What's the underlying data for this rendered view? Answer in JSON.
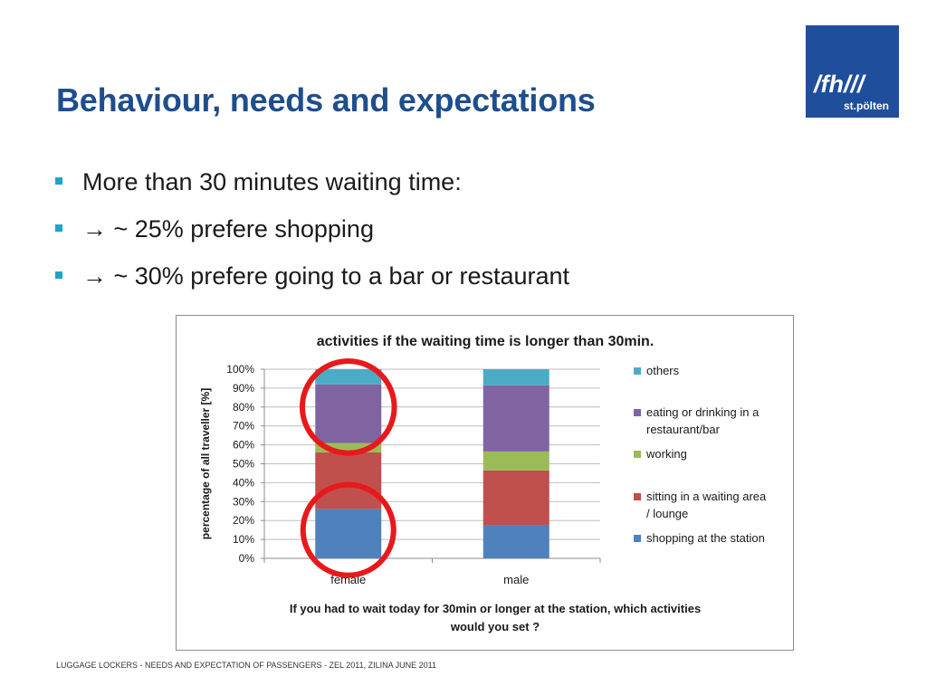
{
  "slide": {
    "title": "Behaviour, needs and expectations",
    "logo_main": "/fh///",
    "logo_sub": "st.pölten",
    "bullets": [
      "More than 30 minutes waiting time:",
      "→ ~ 25% prefere shopping",
      "→ ~ 30% prefere going to a bar or restaurant"
    ],
    "footer": "LUGGAGE LOCKERS - NEEDS AND EXPECTATION OF PASSENGERS  - ZEL 2011, ZILINA JUNE 2011"
  },
  "colors": {
    "title": "#1f4e8c",
    "logo_bg": "#1f4e9c",
    "bullet": "#1ea4c8",
    "highlight_circle": "#e8191c"
  },
  "chart_data": {
    "type": "bar",
    "stacked": true,
    "title": "activities if the waiting time is longer than 30min.",
    "xlabel": "If you had to wait today for 30min or longer at the station, which activities would you set ?",
    "ylabel": "percentage of all traveller [%]",
    "ylim": [
      0,
      100
    ],
    "yticks": [
      "0%",
      "10%",
      "20%",
      "30%",
      "40%",
      "50%",
      "60%",
      "70%",
      "80%",
      "90%",
      "100%"
    ],
    "grid": true,
    "legend_position": "right",
    "categories": [
      "female",
      "male"
    ],
    "series": [
      {
        "name": "shopping at the station",
        "color": "#4f81bd",
        "values": [
          26,
          17.5
        ]
      },
      {
        "name": "sitting in a waiting area / lounge",
        "color": "#c0504d",
        "values": [
          30,
          29
        ]
      },
      {
        "name": "working",
        "color": "#9bbb59",
        "values": [
          5,
          10
        ]
      },
      {
        "name": "eating or drinking in a restaurant/bar",
        "color": "#8064a2",
        "values": [
          31,
          35
        ]
      },
      {
        "name": "others",
        "color": "#4bacc6",
        "values": [
          8,
          8.5
        ]
      }
    ],
    "legend_lines": [
      [
        "others"
      ],
      [
        "eating or drinking in a",
        "restaurant/bar"
      ],
      [
        "working"
      ],
      [
        "sitting in a waiting area",
        "/ lounge"
      ],
      [
        "shopping at the station"
      ]
    ],
    "xlabel_lines": [
      "If you had to wait today for 30min or longer at the station, which activities",
      "would you set ?"
    ],
    "highlights": [
      {
        "category": "female",
        "range": [
          60,
          100
        ]
      },
      {
        "category": "female",
        "range": [
          0,
          30
        ]
      }
    ]
  }
}
